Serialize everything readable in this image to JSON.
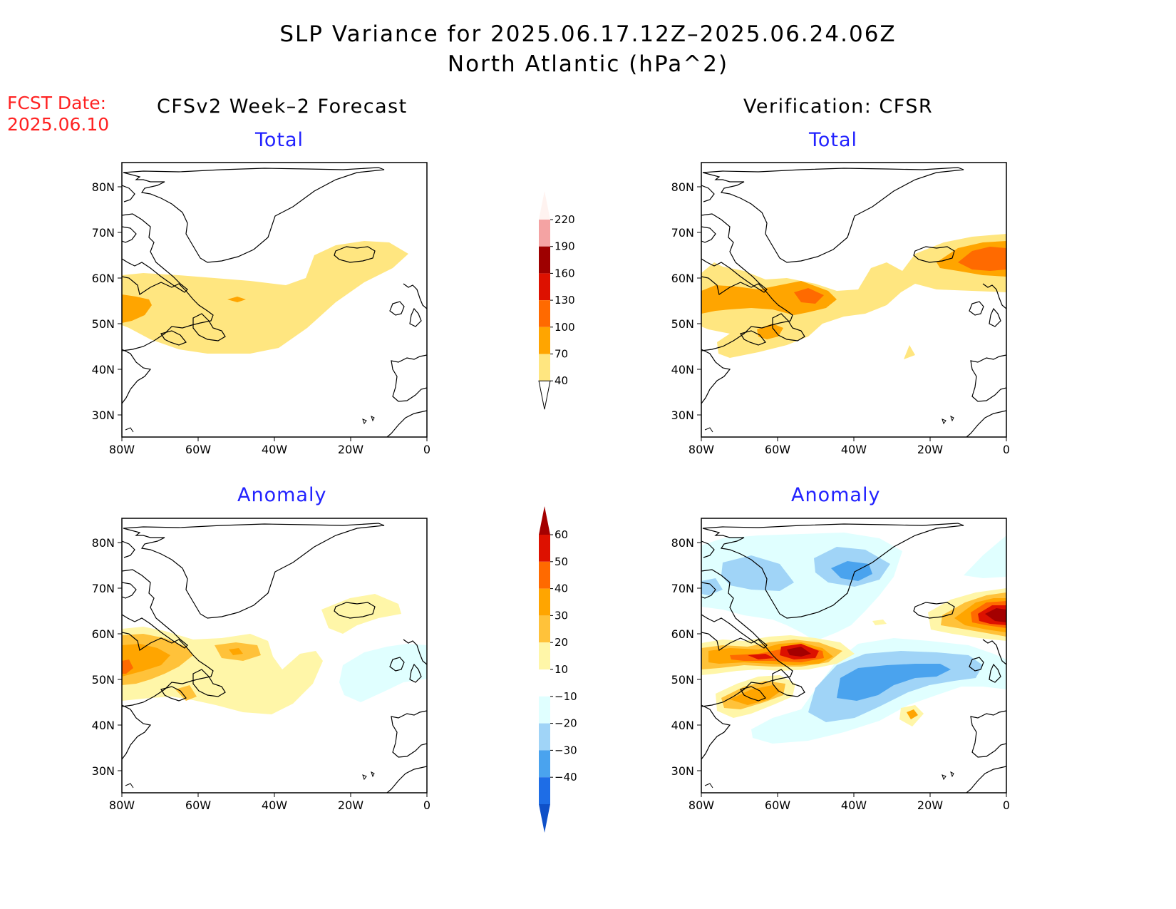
{
  "title": {
    "line1": "SLP Variance for 2025.06.17.12Z–2025.06.24.06Z",
    "line2": "North Atlantic (hPa^2)"
  },
  "fcst": {
    "label": "FCST Date:",
    "date": "2025.06.10"
  },
  "columns": {
    "left": "CFSv2 Week–2 Forecast",
    "right": "Verification: CFSR"
  },
  "panels": {
    "total_label": "Total",
    "anomaly_label": "Anomaly"
  },
  "axes": {
    "lat_ticks": [
      "80N",
      "70N",
      "60N",
      "50N",
      "40N",
      "30N"
    ],
    "lon_ticks": [
      "80W",
      "60W",
      "40W",
      "20W",
      "0"
    ]
  },
  "colorbars": {
    "total": {
      "levels": [
        "220",
        "190",
        "160",
        "130",
        "100",
        "70",
        "40"
      ],
      "colors": [
        "#fde0dd",
        "#f4a3a3",
        "#9e0000",
        "#dd1100",
        "#ff6a00",
        "#ffa500",
        "#ffe680"
      ]
    },
    "anomaly": {
      "levels": [
        "60",
        "50",
        "40",
        "30",
        "20",
        "10",
        "−10",
        "−20",
        "−30",
        "−40"
      ],
      "colors": [
        "#a40000",
        "#dd1100",
        "#ff6a00",
        "#ffa500",
        "#ffc23a",
        "#fff6a8",
        "#ffffff",
        "#e0ffff",
        "#a0d4f7",
        "#4aa3ee",
        "#1e6de6",
        "#0f50c8"
      ]
    }
  },
  "colors": {
    "fill_40_70": "#ffe680",
    "fill_70_100": "#ffa500",
    "fill_100_130": "#ff6a00",
    "fill_130_160": "#dd1100",
    "anom_10_20": "#fff6a8",
    "anom_20_30": "#ffc23a",
    "anom_30_40": "#ffa500",
    "anom_40_50": "#ff6a00",
    "anom_50_60": "#dd1100",
    "anom_60": "#a40000",
    "anom_m10_m20": "#e0ffff",
    "anom_m20_m30": "#a0d4f7",
    "anom_m30_m40": "#4aa3ee",
    "anom_m40": "#1e6de6"
  }
}
